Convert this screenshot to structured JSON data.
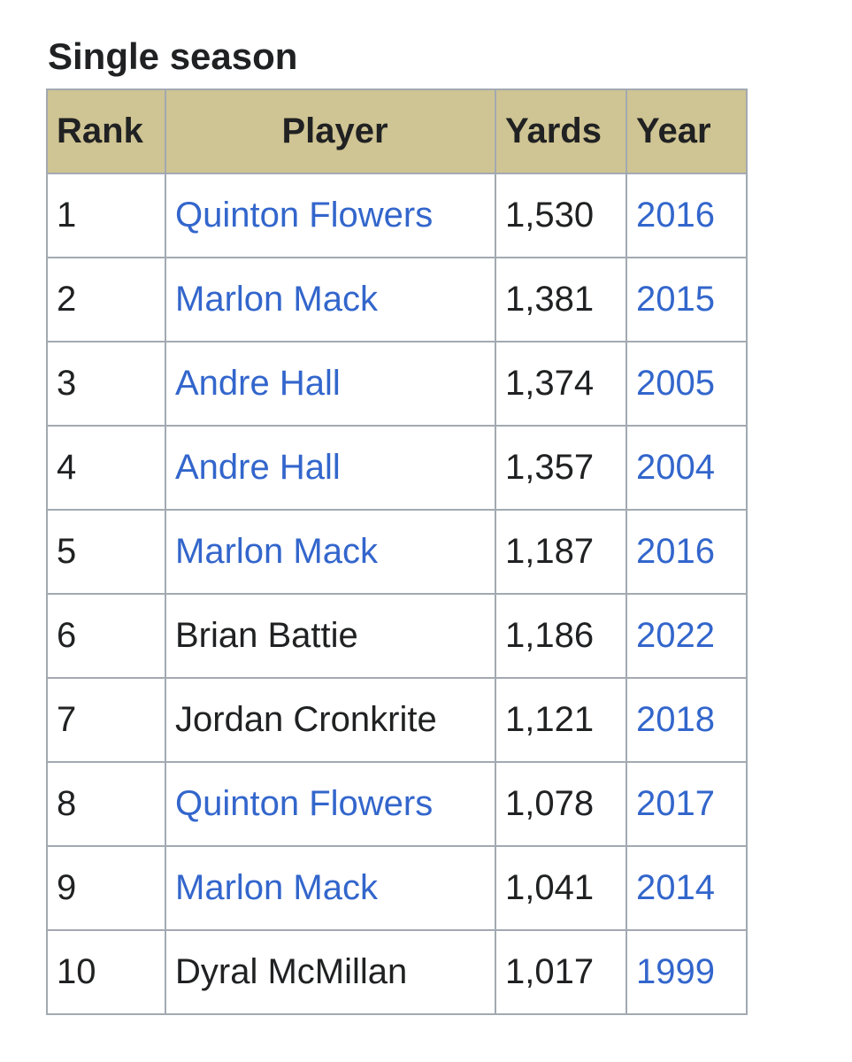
{
  "section": {
    "title": "Single season"
  },
  "table": {
    "headers": {
      "rank": "Rank",
      "player": "Player",
      "yards": "Yards",
      "year": "Year"
    },
    "rows": [
      {
        "rank": "1",
        "player": "Quinton Flowers",
        "player_linked": true,
        "yards": "1,530",
        "year": "2016"
      },
      {
        "rank": "2",
        "player": "Marlon Mack",
        "player_linked": true,
        "yards": "1,381",
        "year": "2015"
      },
      {
        "rank": "3",
        "player": "Andre Hall",
        "player_linked": true,
        "yards": "1,374",
        "year": "2005"
      },
      {
        "rank": "4",
        "player": "Andre Hall",
        "player_linked": true,
        "yards": "1,357",
        "year": "2004"
      },
      {
        "rank": "5",
        "player": "Marlon Mack",
        "player_linked": true,
        "yards": "1,187",
        "year": "2016"
      },
      {
        "rank": "6",
        "player": "Brian Battie",
        "player_linked": false,
        "yards": "1,186",
        "year": "2022"
      },
      {
        "rank": "7",
        "player": "Jordan Cronkrite",
        "player_linked": false,
        "yards": "1,121",
        "year": "2018"
      },
      {
        "rank": "8",
        "player": "Quinton Flowers",
        "player_linked": true,
        "yards": "1,078",
        "year": "2017"
      },
      {
        "rank": "9",
        "player": "Marlon Mack",
        "player_linked": true,
        "yards": "1,041",
        "year": "2014"
      },
      {
        "rank": "10",
        "player": "Dyral McMillan",
        "player_linked": false,
        "yards": "1,017",
        "year": "1999"
      }
    ]
  },
  "colors": {
    "header_background": "#cfc493",
    "link": "#3366cc",
    "text": "#202122",
    "border": "#a2a9b1"
  }
}
